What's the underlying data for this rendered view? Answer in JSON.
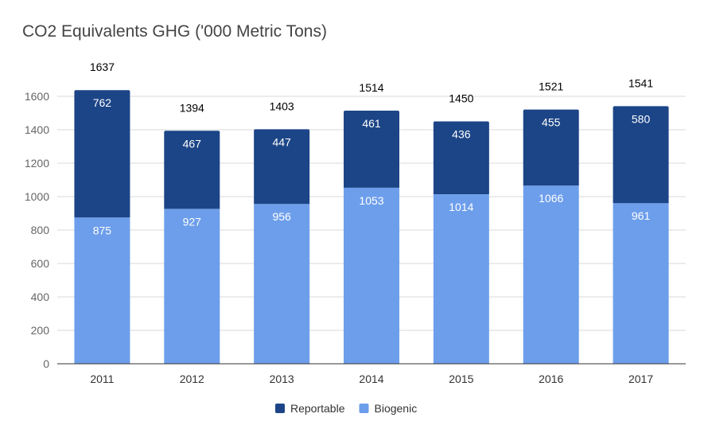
{
  "chart_data": {
    "type": "bar",
    "stacked": true,
    "title": "CO2 Equivalents GHG ('000 Metric Tons)",
    "xlabel": "",
    "ylabel": "",
    "categories": [
      "2011",
      "2012",
      "2013",
      "2014",
      "2015",
      "2016",
      "2017"
    ],
    "series": [
      {
        "name": "Biogenic",
        "color": "#6d9eeb",
        "values": [
          875,
          927,
          956,
          1053,
          1014,
          1066,
          961
        ]
      },
      {
        "name": "Reportable",
        "color": "#1c4587",
        "values": [
          762,
          467,
          447,
          461,
          436,
          455,
          580
        ]
      }
    ],
    "totals": [
      1637,
      1394,
      1403,
      1514,
      1450,
      1521,
      1541
    ],
    "ylim": [
      0,
      1700
    ],
    "yticks": [
      0,
      200,
      400,
      600,
      800,
      1000,
      1200,
      1400,
      1600
    ],
    "grid": true,
    "legend_position": "bottom",
    "legend_order": [
      "Reportable",
      "Biogenic"
    ]
  }
}
